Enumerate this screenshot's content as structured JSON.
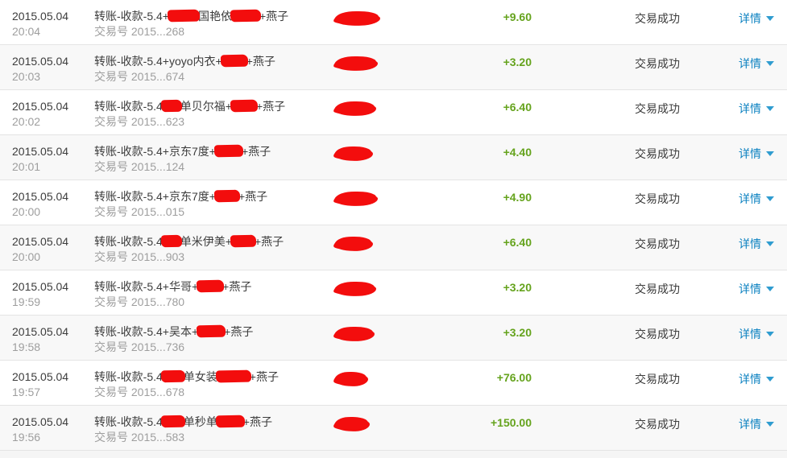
{
  "labels": {
    "txn_prefix": "交易号",
    "status": "交易成功",
    "detail": "详情"
  },
  "colors": {
    "amount_green": "#65a31d",
    "link_blue": "#0d82c1",
    "chevron_blue": "#2f9cd0",
    "redaction_red": "#f30d0d",
    "row_alt_bg": "#f8f8f8",
    "separator": "#e4e4e4"
  },
  "rows": [
    {
      "date": "2015.05.04",
      "time": "20:04",
      "desc_parts": [
        {
          "t": "text",
          "v": "转账-收款-5.4+"
        },
        {
          "t": "redact",
          "w": 40
        },
        {
          "t": "text",
          "v": "国艳依"
        },
        {
          "t": "redact",
          "w": 38
        },
        {
          "t": "text",
          "v": "+燕子"
        }
      ],
      "txn_id": "2015...268",
      "name_redact_w": 55,
      "amount": "+9.60"
    },
    {
      "date": "2015.05.04",
      "time": "20:03",
      "desc_parts": [
        {
          "t": "text",
          "v": "转账-收款-5.4+yoyo内衣+"
        },
        {
          "t": "redact",
          "w": 34
        },
        {
          "t": "text",
          "v": "+燕子"
        }
      ],
      "txn_id": "2015...674",
      "name_redact_w": 52,
      "amount": "+3.20"
    },
    {
      "date": "2015.05.04",
      "time": "20:02",
      "desc_parts": [
        {
          "t": "text",
          "v": "转账-收款-5.4"
        },
        {
          "t": "redact",
          "w": 26
        },
        {
          "t": "text",
          "v": "单贝尔福+"
        },
        {
          "t": "redact",
          "w": 34
        },
        {
          "t": "text",
          "v": "+燕子"
        }
      ],
      "txn_id": "2015...623",
      "name_redact_w": 50,
      "amount": "+6.40"
    },
    {
      "date": "2015.05.04",
      "time": "20:01",
      "desc_parts": [
        {
          "t": "text",
          "v": "转账-收款-5.4+京东7度+"
        },
        {
          "t": "redact",
          "w": 36
        },
        {
          "t": "text",
          "v": "+燕子"
        }
      ],
      "txn_id": "2015...124",
      "name_redact_w": 46,
      "amount": "+4.40"
    },
    {
      "date": "2015.05.04",
      "time": "20:00",
      "desc_parts": [
        {
          "t": "text",
          "v": "转账-收款-5.4+京东7度+"
        },
        {
          "t": "redact",
          "w": 32
        },
        {
          "t": "text",
          "v": "+燕子"
        }
      ],
      "txn_id": "2015...015",
      "name_redact_w": 52,
      "amount": "+4.90"
    },
    {
      "date": "2015.05.04",
      "time": "20:00",
      "desc_parts": [
        {
          "t": "text",
          "v": "转账-收款-5.4"
        },
        {
          "t": "redact",
          "w": 26
        },
        {
          "t": "text",
          "v": "单米伊美+"
        },
        {
          "t": "redact",
          "w": 32
        },
        {
          "t": "text",
          "v": "+燕子"
        }
      ],
      "txn_id": "2015...903",
      "name_redact_w": 46,
      "amount": "+6.40"
    },
    {
      "date": "2015.05.04",
      "time": "19:59",
      "desc_parts": [
        {
          "t": "text",
          "v": "转账-收款-5.4+华哥+"
        },
        {
          "t": "redact",
          "w": 34
        },
        {
          "t": "text",
          "v": "+燕子"
        }
      ],
      "txn_id": "2015...780",
      "name_redact_w": 50,
      "amount": "+3.20"
    },
    {
      "date": "2015.05.04",
      "time": "19:58",
      "desc_parts": [
        {
          "t": "text",
          "v": "转账-收款-5.4+吴本+"
        },
        {
          "t": "redact",
          "w": 36
        },
        {
          "t": "text",
          "v": "+燕子"
        }
      ],
      "txn_id": "2015...736",
      "name_redact_w": 48,
      "amount": "+3.20"
    },
    {
      "date": "2015.05.04",
      "time": "19:57",
      "desc_parts": [
        {
          "t": "text",
          "v": "转账-收款-5.4"
        },
        {
          "t": "redact",
          "w": 30
        },
        {
          "t": "text",
          "v": "单女装"
        },
        {
          "t": "redact",
          "w": 44
        },
        {
          "t": "text",
          "v": "+燕子"
        }
      ],
      "txn_id": "2015...678",
      "name_redact_w": 40,
      "amount": "+76.00"
    },
    {
      "date": "2015.05.04",
      "time": "19:56",
      "desc_parts": [
        {
          "t": "text",
          "v": "转账-收款-5.4"
        },
        {
          "t": "redact",
          "w": 30
        },
        {
          "t": "text",
          "v": "单秒单"
        },
        {
          "t": "redact",
          "w": 36
        },
        {
          "t": "text",
          "v": "+燕子"
        }
      ],
      "txn_id": "2015...583",
      "name_redact_w": 42,
      "amount": "+150.00"
    }
  ]
}
